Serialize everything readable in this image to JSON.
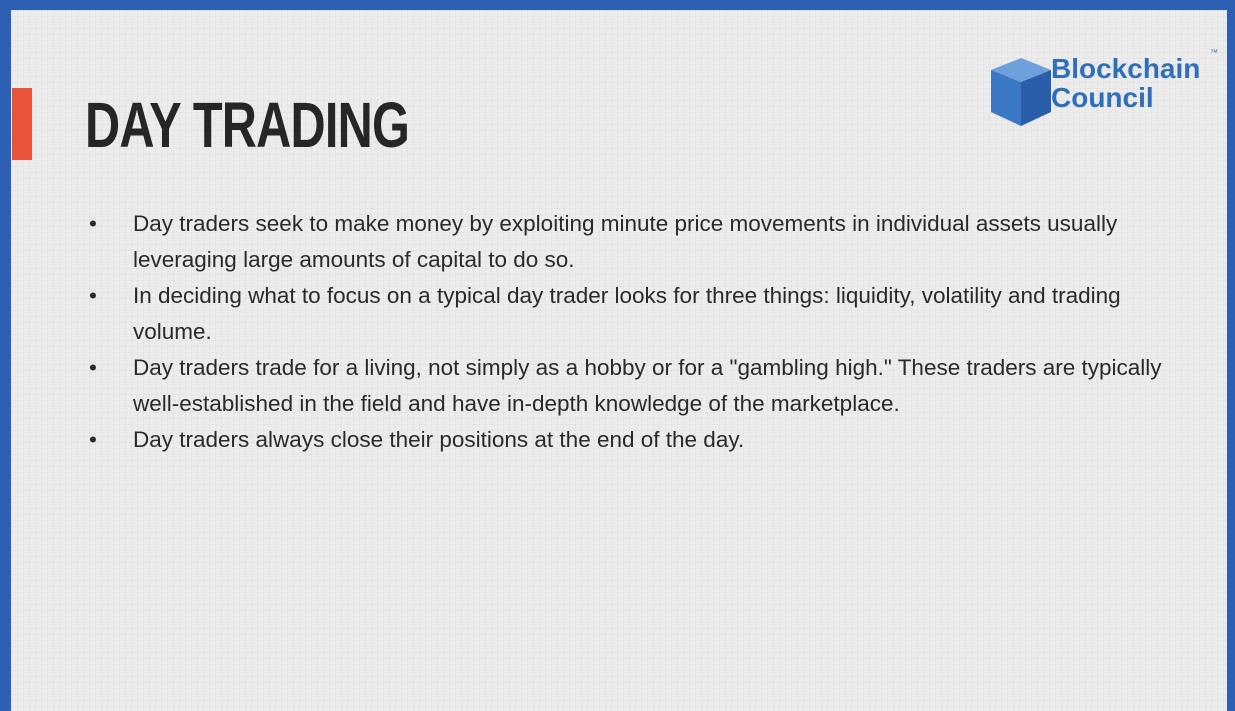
{
  "header": {
    "title": "DAY TRADING",
    "logo": {
      "line1": "Blockchain",
      "line2": "Council",
      "tm": "™"
    }
  },
  "bullets": [
    "Day traders seek to make money by exploiting minute price movements in individual assets usually leveraging large amounts of capital to do so.",
    "In deciding what to focus on a typical day trader looks for three things: liquidity, volatility and trading volume.",
    "Day traders trade for a living, not simply as a hobby or for a \"gambling high.\" These traders are typically well-established in the field and have in-depth knowledge of the marketplace.",
    "Day traders always close their positions at the end of the day."
  ]
}
